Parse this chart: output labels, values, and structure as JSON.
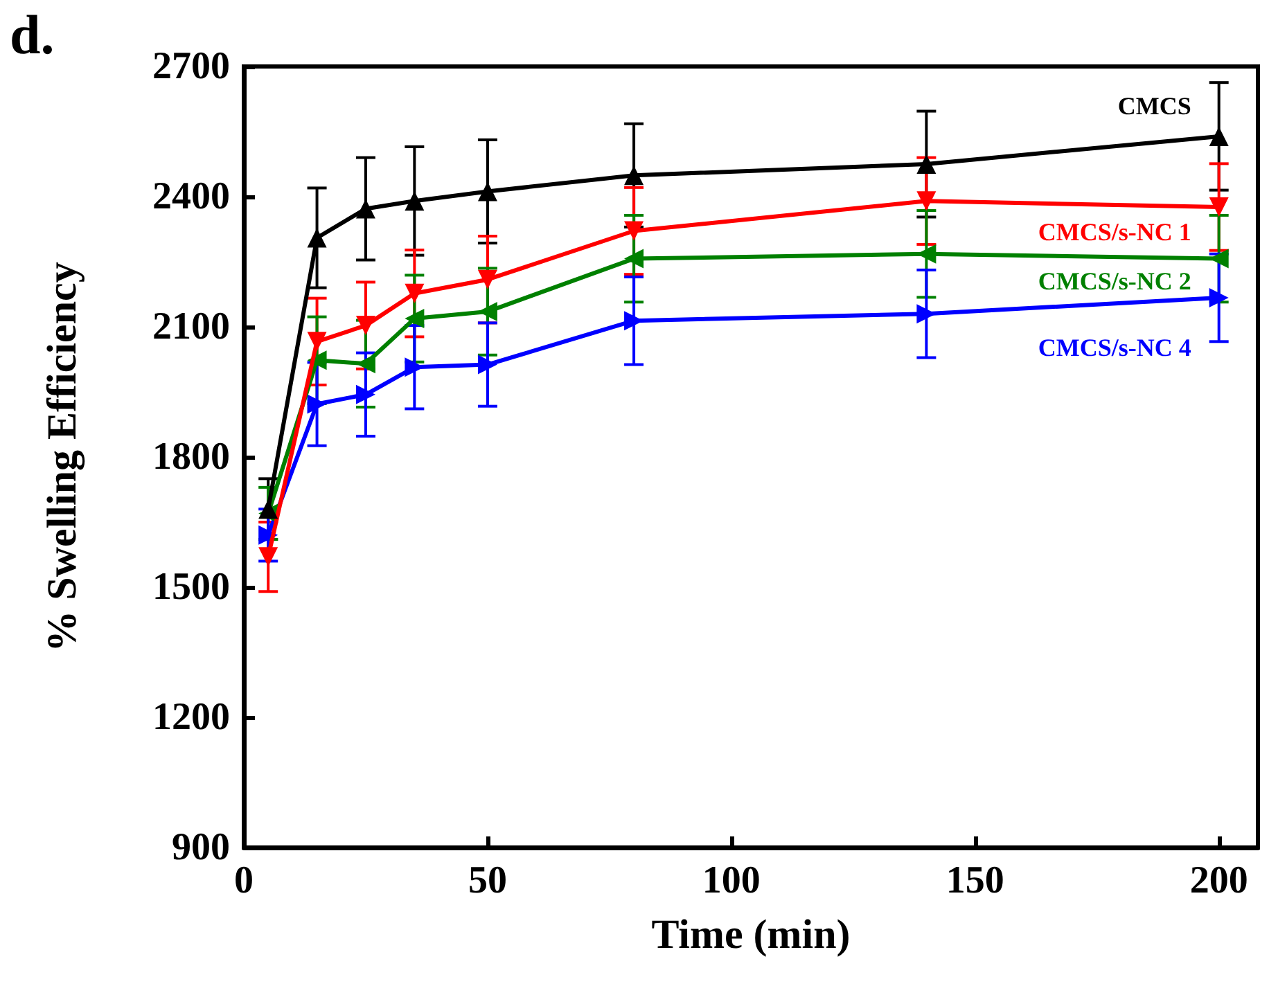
{
  "chart_data": {
    "type": "line",
    "title": "d.",
    "xlabel": "Time (min)",
    "ylabel": "% Swelling Efficiency",
    "x": [
      5,
      15,
      25,
      35,
      50,
      80,
      140,
      200
    ],
    "series": [
      {
        "name": "CMCS",
        "color": "#000000",
        "marker": "triangle",
        "values": [
          1680,
          2305,
          2372,
          2390,
          2412,
          2449,
          2475,
          2539
        ],
        "errors": [
          70,
          115,
          118,
          125,
          119,
          119,
          122,
          124
        ]
      },
      {
        "name": "CMCS/s-NC 1",
        "color": "#ff0000",
        "marker": "triangle-down",
        "values": [
          1570,
          2066,
          2103,
          2177,
          2209,
          2321,
          2390,
          2376
        ],
        "errors": [
          80,
          100,
          100,
          100,
          100,
          100,
          100,
          100
        ]
      },
      {
        "name": "CMCS/s-NC 2",
        "color": "#008000",
        "marker": "triangle-left",
        "values": [
          1670,
          2023,
          2015,
          2119,
          2135,
          2257,
          2268,
          2257
        ],
        "errors": [
          60,
          100,
          100,
          100,
          100,
          100,
          100,
          100
        ]
      },
      {
        "name": "CMCS/s-NC 4",
        "color": "#0000ff",
        "marker": "triangle-right",
        "values": [
          1620,
          1922,
          1944,
          2007,
          2013,
          2114,
          2130,
          2167
        ],
        "errors": [
          60,
          96,
          96,
          96,
          96,
          101,
          101,
          101
        ]
      }
    ],
    "xlim": [
      0,
      208
    ],
    "xticks": [
      0,
      50,
      100,
      150,
      200
    ],
    "ylim": [
      900,
      2700
    ],
    "yticks": [
      900,
      1200,
      1500,
      1800,
      2100,
      2400,
      2700
    ],
    "grid": false,
    "legend": false,
    "line_style": "solid"
  }
}
